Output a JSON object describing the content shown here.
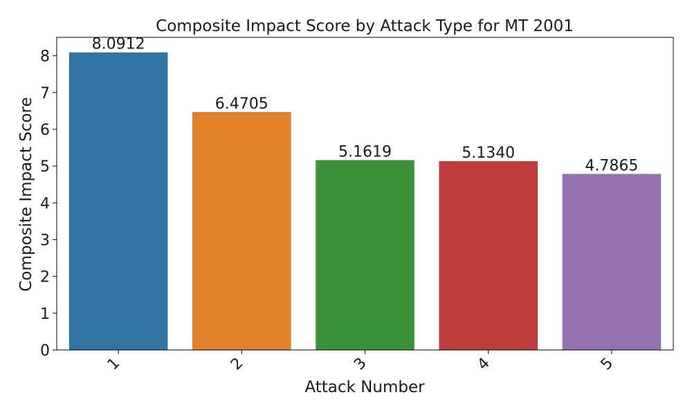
{
  "chart_data": {
    "type": "bar",
    "title": "Composite Impact Score by Attack Type for MT 2001",
    "xlabel": "Attack Number",
    "ylabel": "Composite Impact Score",
    "categories": [
      "1",
      "2",
      "3",
      "4",
      "5"
    ],
    "values": [
      8.0912,
      6.4705,
      5.1619,
      5.134,
      4.7865
    ],
    "value_labels": [
      "8.0912",
      "6.4705",
      "5.1619",
      "5.1340",
      "4.7865"
    ],
    "colors": [
      "#3274a1",
      "#e1812c",
      "#3a923a",
      "#c03d3e",
      "#9372b2"
    ],
    "yticks": [
      "0",
      "1",
      "2",
      "3",
      "4",
      "5",
      "6",
      "7",
      "8"
    ],
    "ylim": [
      0,
      8.5
    ],
    "grid": false,
    "legend": "none"
  }
}
